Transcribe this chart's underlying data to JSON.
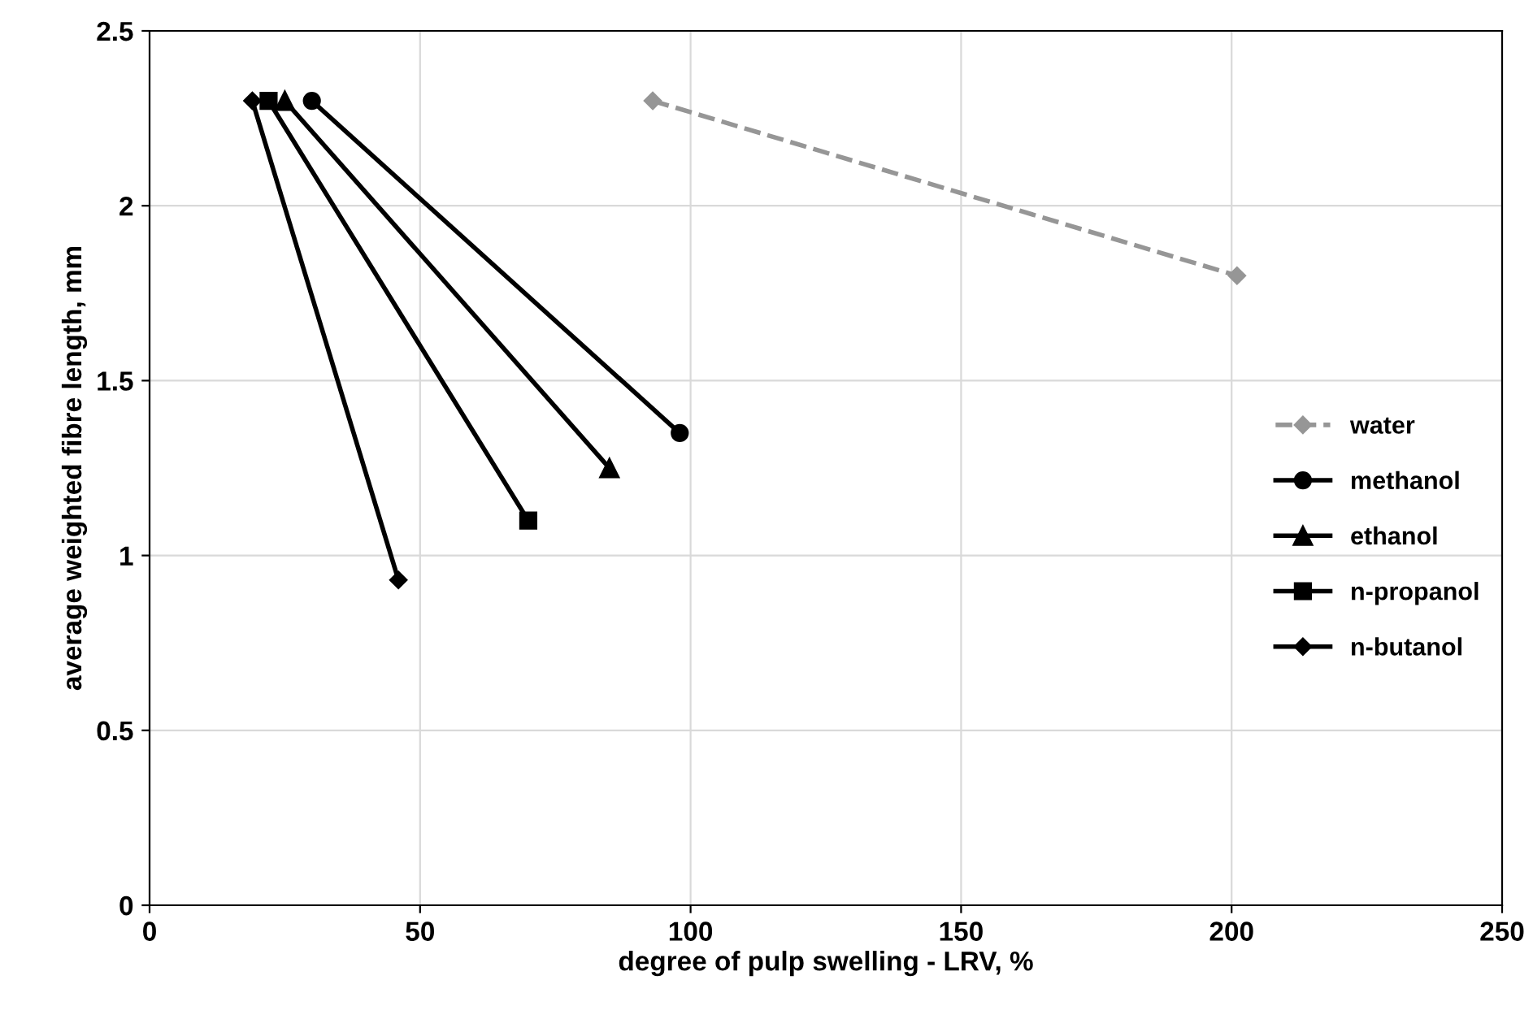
{
  "chart_data": {
    "type": "line",
    "xlabel": "degree of pulp swelling - LRV, %",
    "ylabel": "average weighted fibre length, mm",
    "xlim": [
      0,
      250
    ],
    "xticks": [
      0,
      50,
      100,
      150,
      200,
      250
    ],
    "ylim": [
      0,
      2.5
    ],
    "yticks": [
      0,
      0.5,
      1,
      1.5,
      2,
      2.5
    ],
    "grid": true,
    "legend": "right",
    "series": [
      {
        "name": "water",
        "color": "#969696",
        "x": [
          93,
          201
        ],
        "values": [
          2.3,
          1.8
        ],
        "marker": "diamond",
        "line_style": "dashed"
      },
      {
        "name": "methanol",
        "color": "#000000",
        "x": [
          30,
          98
        ],
        "values": [
          2.3,
          1.35
        ],
        "marker": "circle",
        "line_style": "solid"
      },
      {
        "name": "ethanol",
        "color": "#000000",
        "x": [
          25,
          85
        ],
        "values": [
          2.3,
          1.25
        ],
        "marker": "triangle",
        "line_style": "solid"
      },
      {
        "name": "n-propanol",
        "color": "#000000",
        "x": [
          22,
          70
        ],
        "values": [
          2.3,
          1.1
        ],
        "marker": "square",
        "line_style": "solid"
      },
      {
        "name": "n-butanol",
        "color": "#000000",
        "x": [
          19,
          46
        ],
        "values": [
          2.3,
          0.93
        ],
        "marker": "diamond",
        "line_style": "solid"
      }
    ]
  }
}
